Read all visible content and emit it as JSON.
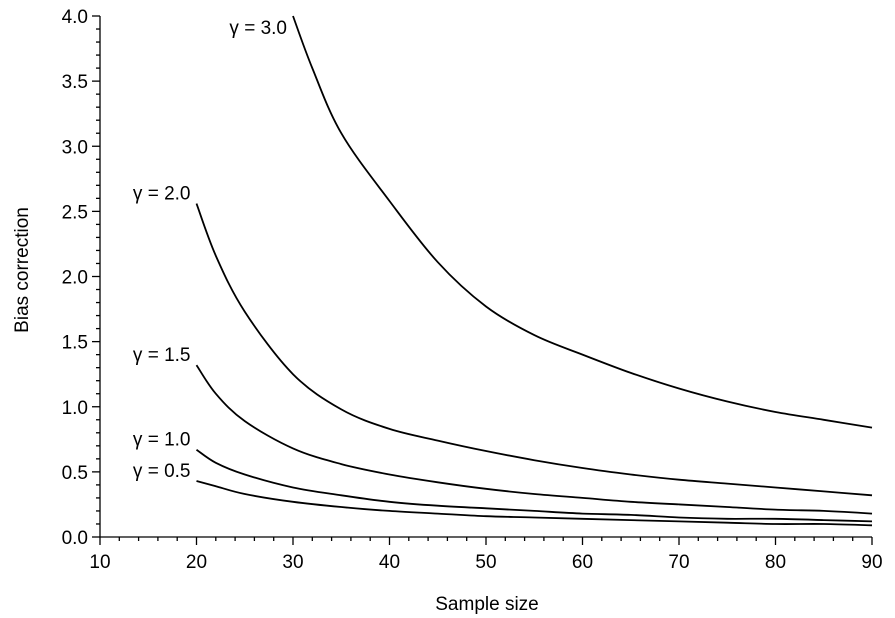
{
  "chart_data": {
    "type": "line",
    "title": "",
    "xlabel": "Sample size",
    "ylabel": "Bias correction",
    "xlim": [
      10,
      90
    ],
    "ylim": [
      0,
      4.0
    ],
    "x_ticks": [
      "10",
      "20",
      "30",
      "40",
      "50",
      "60",
      "70",
      "80",
      "90"
    ],
    "y_ticks": [
      "0.0",
      "0.5",
      "1.0",
      "1.5",
      "2.0",
      "2.5",
      "3.0",
      "3.5",
      "4.0"
    ],
    "grid": false,
    "legend": "inline labels at curve starts",
    "series": [
      {
        "name": "γ = 3.0",
        "x": [
          30,
          32,
          35,
          40,
          45,
          50,
          55,
          60,
          65,
          70,
          75,
          80,
          85,
          90
        ],
        "y": [
          4.0,
          3.6,
          3.1,
          2.58,
          2.11,
          1.77,
          1.55,
          1.4,
          1.26,
          1.14,
          1.04,
          0.96,
          0.9,
          0.84
        ]
      },
      {
        "name": "γ = 2.0",
        "x": [
          20,
          22,
          25,
          30,
          35,
          40,
          45,
          50,
          55,
          60,
          65,
          70,
          75,
          80,
          85,
          90
        ],
        "y": [
          2.56,
          2.16,
          1.73,
          1.25,
          0.98,
          0.83,
          0.74,
          0.66,
          0.59,
          0.53,
          0.48,
          0.44,
          0.41,
          0.38,
          0.35,
          0.32
        ]
      },
      {
        "name": "γ = 1.5",
        "x": [
          20,
          22,
          25,
          30,
          35,
          40,
          45,
          50,
          55,
          60,
          65,
          70,
          75,
          80,
          85,
          90
        ],
        "y": [
          1.32,
          1.1,
          0.89,
          0.68,
          0.56,
          0.48,
          0.42,
          0.37,
          0.33,
          0.3,
          0.27,
          0.25,
          0.23,
          0.21,
          0.2,
          0.18
        ]
      },
      {
        "name": "γ = 1.0",
        "x": [
          20,
          22,
          25,
          30,
          35,
          40,
          45,
          50,
          55,
          60,
          65,
          70,
          75,
          80,
          85,
          90
        ],
        "y": [
          0.67,
          0.57,
          0.48,
          0.38,
          0.32,
          0.27,
          0.24,
          0.22,
          0.2,
          0.18,
          0.17,
          0.15,
          0.14,
          0.14,
          0.13,
          0.12
        ]
      },
      {
        "name": "γ = 0.5",
        "x": [
          20,
          22,
          25,
          30,
          35,
          40,
          45,
          50,
          55,
          60,
          65,
          70,
          75,
          80,
          85,
          90
        ],
        "y": [
          0.43,
          0.39,
          0.33,
          0.27,
          0.23,
          0.2,
          0.18,
          0.16,
          0.15,
          0.14,
          0.13,
          0.12,
          0.11,
          0.1,
          0.1,
          0.09
        ]
      }
    ]
  }
}
